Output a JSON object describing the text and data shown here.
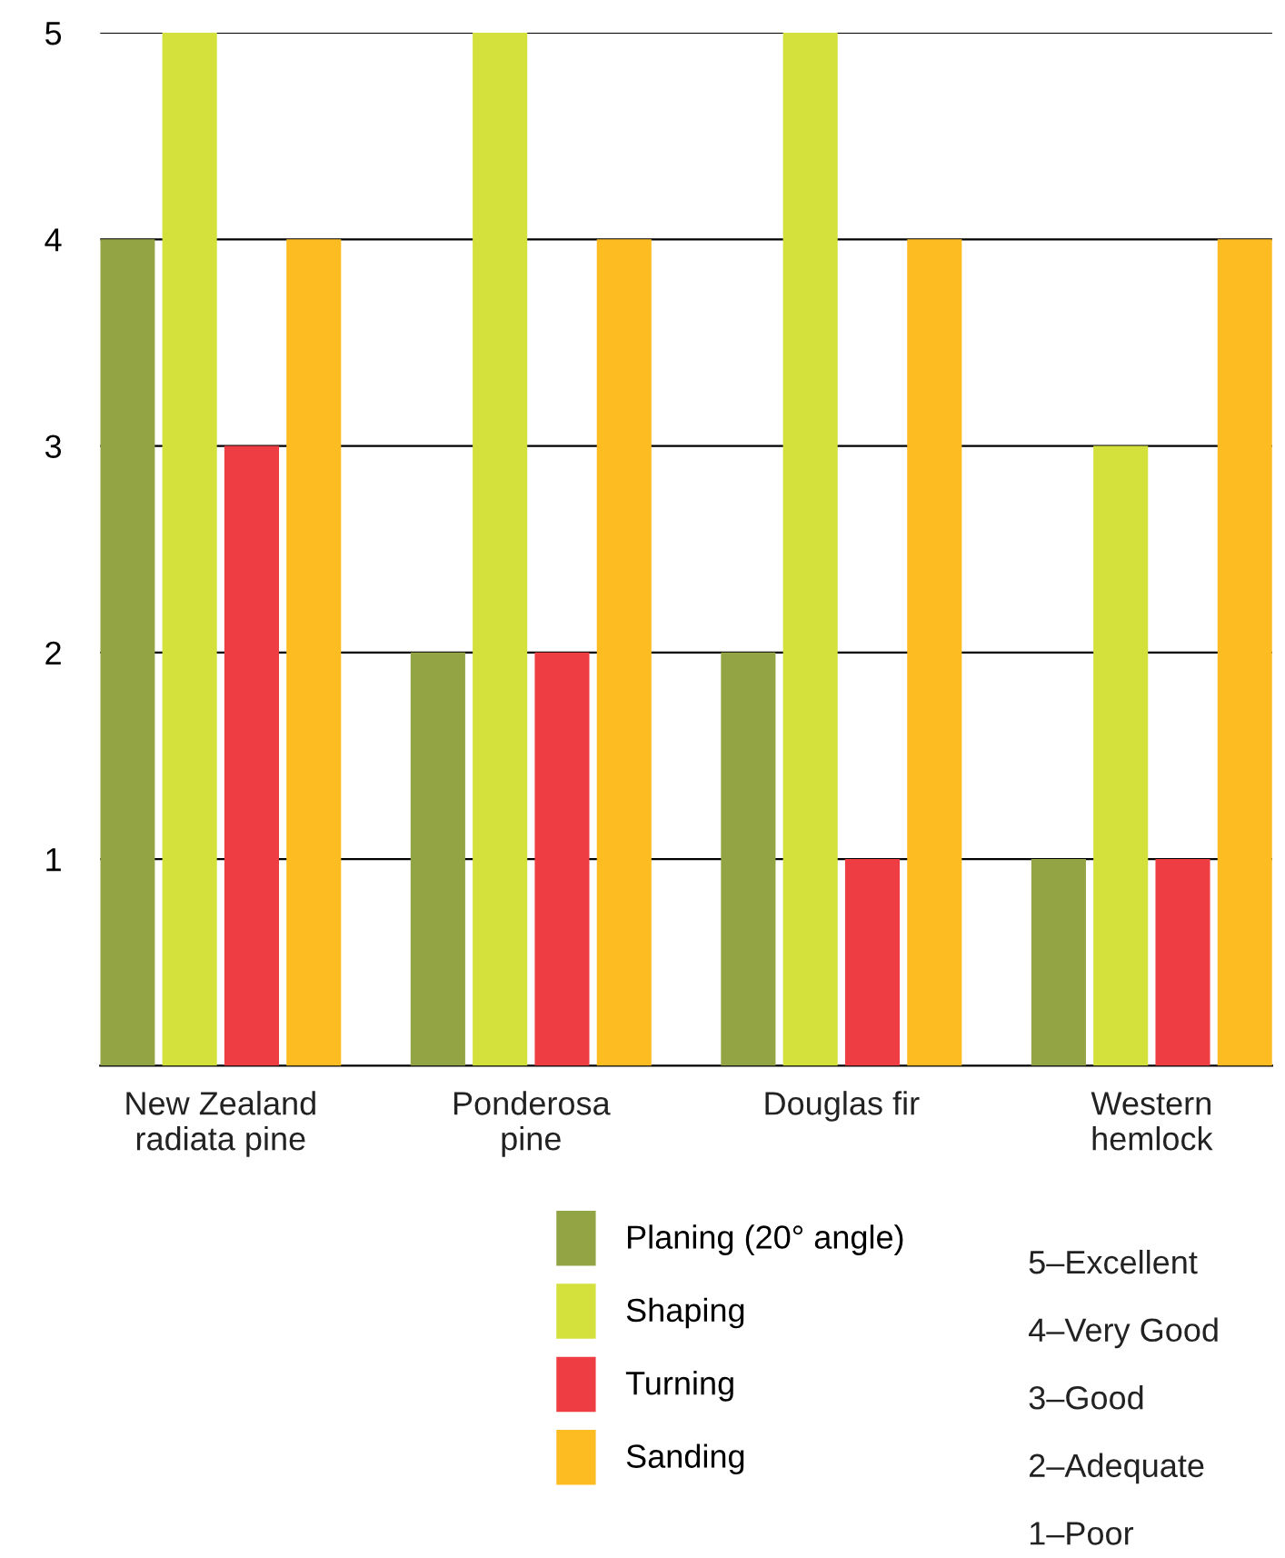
{
  "chart_data": {
    "type": "bar",
    "categories": [
      "New Zealand\nradiata pine",
      "Ponderosa\npine",
      "Douglas fir",
      "Western\nhemlock"
    ],
    "series": [
      {
        "name": "Planing (20° angle)",
        "color": "#93a444",
        "values": [
          4,
          2,
          2,
          1
        ]
      },
      {
        "name": "Shaping",
        "color": "#d4e03c",
        "values": [
          5,
          5,
          5,
          3
        ]
      },
      {
        "name": "Turning",
        "color": "#ee3e44",
        "values": [
          3,
          2,
          1,
          1
        ]
      },
      {
        "name": "Sanding",
        "color": "#fdbc22",
        "values": [
          4,
          4,
          4,
          4
        ]
      }
    ],
    "ylim": [
      0,
      5
    ],
    "yticks": [
      1,
      2,
      3,
      4,
      5
    ],
    "grid": "y",
    "legend": "bottom",
    "annotations": [
      "5–Excellent",
      "4–Very Good",
      "3–Good",
      "2–Adequate",
      "1–Poor"
    ]
  }
}
